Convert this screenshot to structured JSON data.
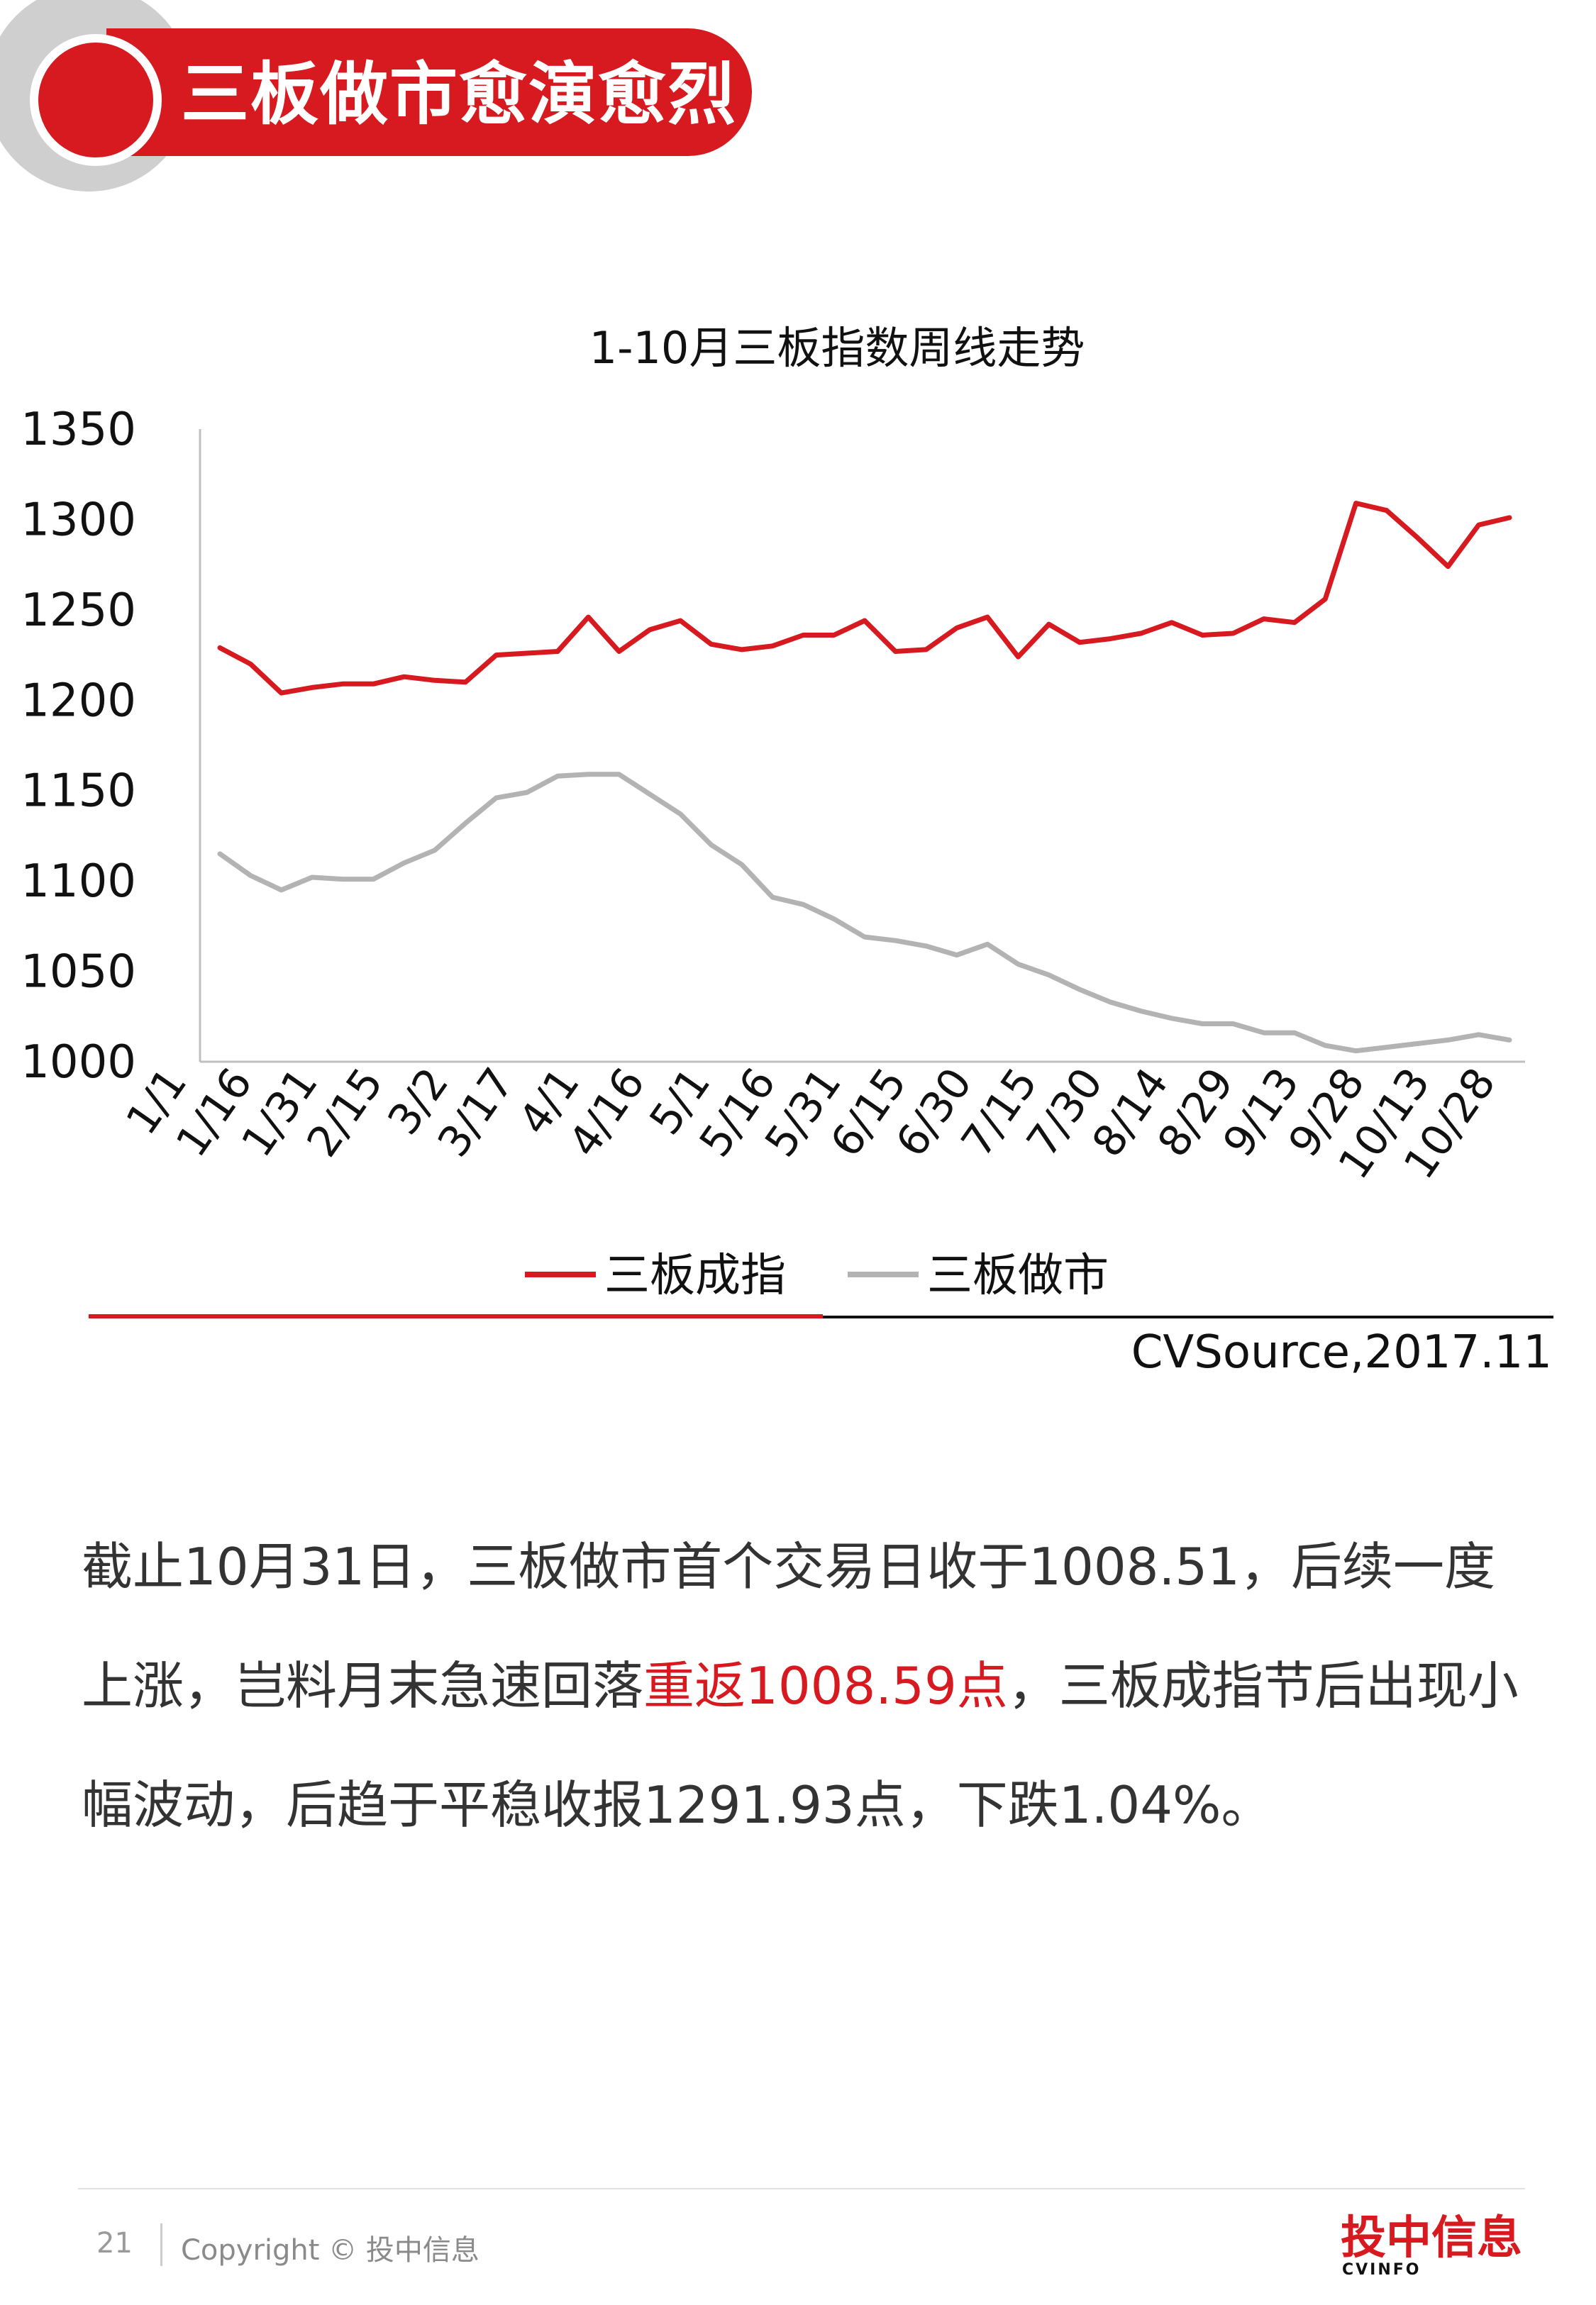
{
  "header": {
    "title": "三板做市愈演愈烈"
  },
  "chart_data": {
    "type": "line",
    "title": "1-10月三板指数周线走势",
    "ylim": [
      1000,
      1350
    ],
    "yticks": [
      "1350",
      "1300",
      "1250",
      "1200",
      "1150",
      "1100",
      "1050",
      "1000"
    ],
    "xtick_labels": [
      "1/1",
      "1/16",
      "1/31",
      "2/15",
      "3/2",
      "3/17",
      "4/1",
      "4/16",
      "5/1",
      "5/16",
      "5/31",
      "6/15",
      "6/30",
      "7/15",
      "7/30",
      "8/14",
      "8/29",
      "9/13",
      "9/28",
      "10/13",
      "10/28"
    ],
    "grid": false,
    "legend_position": "bottom",
    "series": [
      {
        "name": "三板成指",
        "color": "#d71920",
        "values": [
          1229,
          1220,
          1204,
          1207,
          1209,
          1209,
          1213,
          1211,
          1210,
          1225,
          1226,
          1227,
          1246,
          1227,
          1239,
          1244,
          1231,
          1228,
          1230,
          1236,
          1236,
          1244,
          1227,
          1228,
          1240,
          1246,
          1224,
          1242,
          1232,
          1234,
          1237,
          1243,
          1236,
          1237,
          1245,
          1243,
          1256,
          1309,
          1305,
          1290,
          1274,
          1297,
          1301
        ]
      },
      {
        "name": "三板做市",
        "color": "#b3b3b3",
        "values": [
          1115,
          1103,
          1095,
          1102,
          1101,
          1101,
          1110,
          1117,
          1132,
          1146,
          1149,
          1158,
          1159,
          1159,
          1148,
          1137,
          1120,
          1109,
          1091,
          1087,
          1079,
          1069,
          1067,
          1064,
          1059,
          1065,
          1054,
          1048,
          1040,
          1033,
          1028,
          1024,
          1021,
          1021,
          1016,
          1016,
          1009,
          1006,
          1008,
          1010,
          1012,
          1015,
          1012
        ]
      }
    ]
  },
  "source": "CVSource,2017.11",
  "body": {
    "part1": "截止10月31日，三板做市首个交易日收于1008.51，后续一度上涨，岂料月末急速回落",
    "highlight": "重返1008.59点",
    "part2": "，三板成指节后出现小幅波动，后趋于平稳收报1291.93点，下跌1.04%。"
  },
  "footer": {
    "page": "21",
    "copyright": "Copyright © 投中信息",
    "logo_cn": "投中信息",
    "logo_en": "CVINFO"
  }
}
